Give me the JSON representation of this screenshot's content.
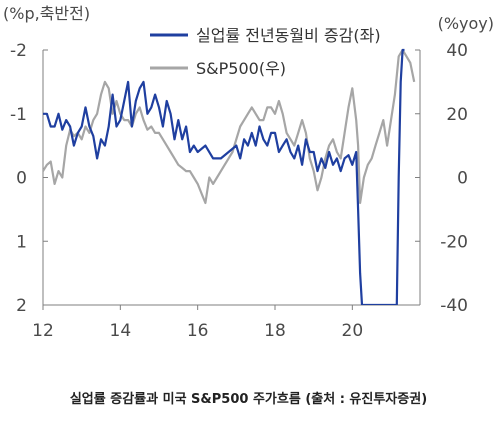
{
  "caption": "실업률 증감률과 미국 S&P500 주가흐름 (출처 : 유진투자증권)",
  "chart_data": {
    "type": "line",
    "left_axis_unit": "(%p,축반전)",
    "right_axis_unit": "(%yoy)",
    "left_axis": {
      "ticks": [
        "-2",
        "-1",
        "0",
        "1",
        "2"
      ],
      "tick_values": [
        -2,
        -1,
        0,
        1,
        2
      ],
      "range": [
        -2,
        2
      ],
      "inverted": true
    },
    "right_axis": {
      "ticks": [
        "40",
        "20",
        "0",
        "-20",
        "-40"
      ],
      "tick_values": [
        40,
        20,
        0,
        -20,
        -40
      ],
      "range": [
        -40,
        40
      ]
    },
    "x_axis": {
      "ticks": [
        "12",
        "14",
        "16",
        "18",
        "20"
      ],
      "tick_values": [
        2012,
        2014,
        2016,
        2018,
        2020
      ],
      "range": [
        2012,
        2021.75
      ]
    },
    "grid": false,
    "legend_position": "top",
    "series": [
      {
        "name": "실업률 전년동월비 증감(좌)",
        "axis": "left",
        "color": "#1f3fa0",
        "x": [
          2012.0,
          2012.1,
          2012.2,
          2012.3,
          2012.4,
          2012.5,
          2012.6,
          2012.7,
          2012.8,
          2012.9,
          2013.0,
          2013.1,
          2013.2,
          2013.3,
          2013.4,
          2013.5,
          2013.6,
          2013.7,
          2013.8,
          2013.9,
          2014.0,
          2014.1,
          2014.2,
          2014.3,
          2014.4,
          2014.5,
          2014.6,
          2014.7,
          2014.8,
          2014.9,
          2015.0,
          2015.1,
          2015.2,
          2015.3,
          2015.4,
          2015.5,
          2015.6,
          2015.7,
          2015.8,
          2015.9,
          2016.0,
          2016.2,
          2016.4,
          2016.6,
          2016.8,
          2017.0,
          2017.1,
          2017.2,
          2017.3,
          2017.4,
          2017.5,
          2017.6,
          2017.7,
          2017.8,
          2017.9,
          2018.0,
          2018.1,
          2018.2,
          2018.3,
          2018.4,
          2018.5,
          2018.6,
          2018.7,
          2018.8,
          2018.9,
          2019.0,
          2019.1,
          2019.2,
          2019.3,
          2019.4,
          2019.5,
          2019.6,
          2019.7,
          2019.8,
          2019.9,
          2020.0,
          2020.1,
          2020.15,
          2020.2,
          2020.25,
          2021.15,
          2021.2,
          2021.25,
          2021.3,
          2021.35
        ],
        "values": [
          -1.0,
          -1.0,
          -0.8,
          -0.8,
          -1.0,
          -0.75,
          -0.9,
          -0.8,
          -0.5,
          -0.7,
          -0.8,
          -1.1,
          -0.8,
          -0.65,
          -0.3,
          -0.6,
          -0.5,
          -0.8,
          -1.3,
          -0.8,
          -0.9,
          -1.2,
          -1.5,
          -0.8,
          -1.2,
          -1.4,
          -1.5,
          -1.0,
          -1.1,
          -1.3,
          -1.1,
          -0.8,
          -1.2,
          -1.0,
          -0.6,
          -0.9,
          -0.6,
          -0.8,
          -0.4,
          -0.5,
          -0.4,
          -0.5,
          -0.3,
          -0.3,
          -0.4,
          -0.5,
          -0.3,
          -0.6,
          -0.5,
          -0.7,
          -0.5,
          -0.8,
          -0.6,
          -0.5,
          -0.7,
          -0.7,
          -0.4,
          -0.5,
          -0.6,
          -0.4,
          -0.3,
          -0.5,
          -0.2,
          -0.6,
          -0.4,
          -0.4,
          -0.1,
          -0.3,
          -0.15,
          -0.4,
          -0.2,
          -0.3,
          -0.1,
          -0.3,
          -0.35,
          -0.2,
          -0.4,
          0.5,
          1.5,
          2.0,
          2.0,
          0.0,
          -1.5,
          -2.0,
          -2.0
        ]
      },
      {
        "name": "S&P500(우)",
        "axis": "right",
        "color": "#a6a6a6",
        "x": [
          2012.0,
          2012.1,
          2012.2,
          2012.3,
          2012.4,
          2012.5,
          2012.6,
          2012.7,
          2012.8,
          2012.9,
          2013.0,
          2013.1,
          2013.2,
          2013.3,
          2013.4,
          2013.5,
          2013.6,
          2013.7,
          2013.8,
          2013.9,
          2014.0,
          2014.1,
          2014.2,
          2014.3,
          2014.4,
          2014.5,
          2014.6,
          2014.7,
          2014.8,
          2014.9,
          2015.0,
          2015.1,
          2015.2,
          2015.3,
          2015.4,
          2015.5,
          2015.6,
          2015.7,
          2015.8,
          2015.9,
          2016.0,
          2016.1,
          2016.2,
          2016.3,
          2016.4,
          2016.5,
          2016.6,
          2016.7,
          2016.8,
          2016.9,
          2017.0,
          2017.1,
          2017.2,
          2017.3,
          2017.4,
          2017.5,
          2017.6,
          2017.7,
          2017.8,
          2017.9,
          2018.0,
          2018.1,
          2018.2,
          2018.3,
          2018.4,
          2018.5,
          2018.6,
          2018.7,
          2018.8,
          2018.9,
          2019.0,
          2019.1,
          2019.2,
          2019.3,
          2019.4,
          2019.5,
          2019.6,
          2019.7,
          2019.8,
          2019.9,
          2020.0,
          2020.1,
          2020.15,
          2020.2,
          2020.3,
          2020.4,
          2020.5,
          2020.6,
          2020.7,
          2020.8,
          2020.9,
          2021.0,
          2021.1,
          2021.2,
          2021.3,
          2021.4,
          2021.5,
          2021.6
        ],
        "values": [
          2,
          4,
          5,
          -2,
          2,
          0,
          10,
          15,
          13,
          14,
          12,
          16,
          14,
          18,
          20,
          26,
          30,
          28,
          20,
          24,
          20,
          18,
          18,
          16,
          20,
          22,
          18,
          15,
          16,
          14,
          14,
          12,
          10,
          8,
          6,
          4,
          3,
          2,
          2,
          0,
          -2,
          -5,
          -8,
          0,
          -2,
          0,
          2,
          4,
          6,
          8,
          12,
          16,
          18,
          20,
          22,
          20,
          18,
          18,
          22,
          22,
          20,
          24,
          20,
          14,
          12,
          10,
          14,
          18,
          14,
          6,
          2,
          -4,
          0,
          6,
          10,
          12,
          8,
          6,
          14,
          22,
          28,
          18,
          10,
          -8,
          0,
          4,
          6,
          10,
          14,
          18,
          10,
          18,
          26,
          38,
          40,
          38,
          36,
          30
        ]
      }
    ]
  }
}
